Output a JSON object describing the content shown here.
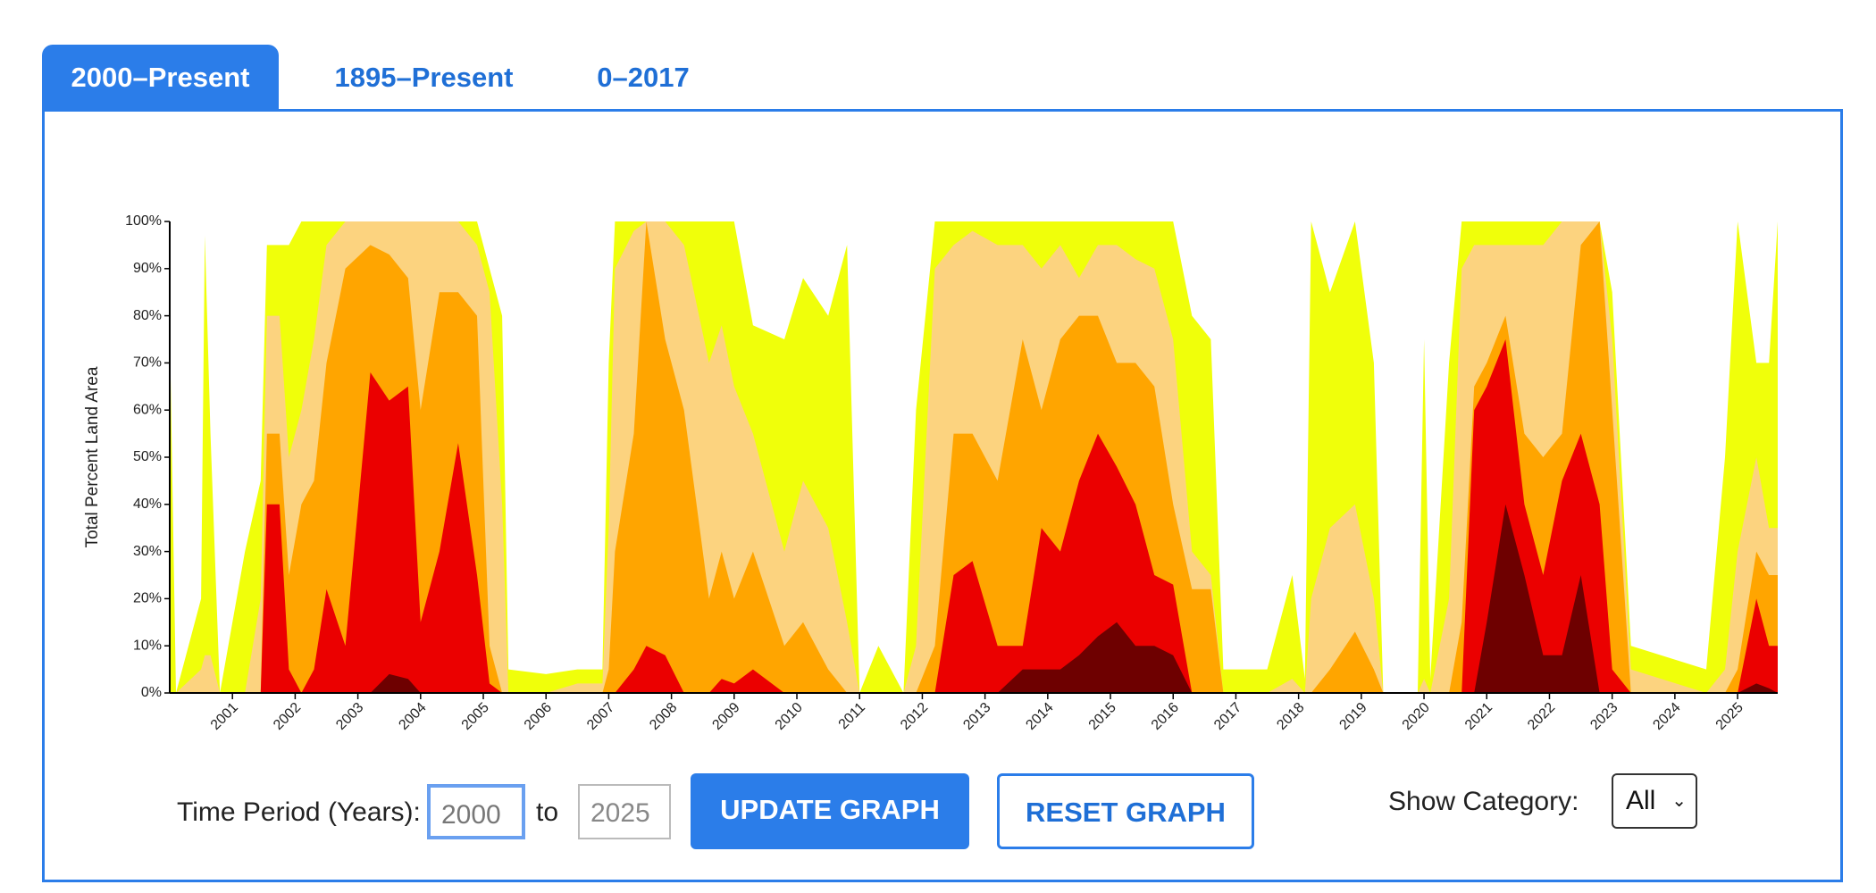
{
  "tabs": [
    "2000–Present",
    "1895–Present",
    "0–2017"
  ],
  "controls": {
    "period_label": "Time Period (Years):",
    "start": "2000",
    "to": "to",
    "end": "2025",
    "update": "UPDATE GRAPH",
    "reset": "RESET GRAPH",
    "category_label": "Show Category:",
    "category": "All"
  },
  "chart_data": {
    "type": "area",
    "ylabel": "Total Percent Land Area",
    "x": [
      2000.0,
      2000.1,
      2000.5,
      2000.56,
      2000.65,
      2000.8,
      2001.2,
      2001.45,
      2001.55,
      2001.75,
      2001.9,
      2002.1,
      2002.3,
      2002.5,
      2002.8,
      2003.2,
      2003.5,
      2003.8,
      2004.0,
      2004.3,
      2004.6,
      2004.9,
      2005.1,
      2005.3,
      2005.4,
      2006.0,
      2006.5,
      2006.9,
      2007.0,
      2007.1,
      2007.4,
      2007.6,
      2007.9,
      2008.2,
      2008.6,
      2008.8,
      2009.0,
      2009.3,
      2009.8,
      2010.1,
      2010.5,
      2010.8,
      2011.0,
      2011.3,
      2011.7,
      2011.9,
      2012.2,
      2012.5,
      2012.8,
      2013.2,
      2013.6,
      2013.9,
      2014.2,
      2014.5,
      2014.8,
      2015.1,
      2015.4,
      2015.7,
      2016.0,
      2016.3,
      2016.6,
      2016.8,
      2017.5,
      2017.9,
      2018.1,
      2018.2,
      2018.5,
      2018.9,
      2019.2,
      2019.35,
      2019.9,
      2020.0,
      2020.1,
      2020.4,
      2020.6,
      2020.8,
      2021.0,
      2021.3,
      2021.6,
      2021.9,
      2022.2,
      2022.5,
      2022.8,
      2023.0,
      2023.3,
      2024.5,
      2024.8,
      2025.0,
      2025.3,
      2025.5,
      2025.64
    ],
    "series": [
      {
        "color": "#f0ff0a",
        "values": [
          78,
          0,
          20,
          97,
          55,
          0,
          30,
          45,
          95,
          95,
          95,
          100,
          100,
          100,
          100,
          100,
          100,
          100,
          100,
          100,
          100,
          100,
          90,
          80,
          5,
          4,
          5,
          5,
          70,
          100,
          100,
          100,
          100,
          100,
          100,
          100,
          100,
          78,
          75,
          88,
          80,
          95,
          0,
          10,
          0,
          60,
          100,
          100,
          100,
          100,
          100,
          100,
          100,
          100,
          100,
          100,
          100,
          100,
          100,
          80,
          75,
          5,
          5,
          25,
          3,
          100,
          85,
          100,
          70,
          0,
          0,
          75,
          3,
          70,
          100,
          100,
          100,
          100,
          100,
          100,
          100,
          100,
          100,
          85,
          10,
          5,
          50,
          100,
          70,
          70,
          100
        ]
      },
      {
        "color": "#fcd37f",
        "values": [
          0,
          0,
          5,
          8,
          8,
          0,
          0,
          20,
          80,
          80,
          50,
          60,
          75,
          95,
          100,
          100,
          100,
          100,
          100,
          100,
          100,
          95,
          85,
          40,
          0,
          0,
          2,
          2,
          35,
          90,
          98,
          100,
          100,
          95,
          70,
          78,
          65,
          55,
          30,
          45,
          35,
          15,
          0,
          0,
          0,
          10,
          90,
          95,
          98,
          95,
          95,
          90,
          95,
          88,
          95,
          95,
          92,
          90,
          75,
          30,
          25,
          0,
          0,
          3,
          0,
          20,
          35,
          40,
          20,
          0,
          0,
          3,
          0,
          20,
          90,
          95,
          95,
          95,
          95,
          95,
          100,
          100,
          100,
          75,
          5,
          0,
          5,
          30,
          50,
          35,
          35
        ]
      },
      {
        "color": "#ffa500",
        "values": [
          0,
          0,
          0,
          0,
          0,
          0,
          0,
          0,
          55,
          55,
          25,
          40,
          45,
          70,
          90,
          95,
          93,
          88,
          60,
          85,
          85,
          80,
          10,
          0,
          0,
          0,
          0,
          0,
          5,
          30,
          55,
          100,
          75,
          60,
          20,
          30,
          20,
          30,
          10,
          15,
          5,
          0,
          0,
          0,
          0,
          0,
          10,
          55,
          55,
          45,
          75,
          60,
          75,
          80,
          80,
          70,
          70,
          65,
          40,
          22,
          22,
          0,
          0,
          0,
          0,
          0,
          5,
          13,
          5,
          0,
          0,
          0,
          0,
          0,
          15,
          65,
          70,
          80,
          55,
          50,
          55,
          95,
          100,
          60,
          0,
          0,
          0,
          5,
          30,
          25,
          25
        ]
      },
      {
        "color": "#eb0000",
        "values": [
          0,
          0,
          0,
          0,
          0,
          0,
          0,
          0,
          40,
          40,
          5,
          0,
          5,
          22,
          10,
          68,
          62,
          65,
          15,
          30,
          53,
          25,
          2,
          0,
          0,
          0,
          0,
          0,
          0,
          0,
          5,
          10,
          8,
          0,
          0,
          3,
          2,
          5,
          0,
          0,
          0,
          0,
          0,
          0,
          0,
          0,
          0,
          25,
          28,
          10,
          10,
          35,
          30,
          45,
          55,
          48,
          40,
          25,
          23,
          0,
          0,
          0,
          0,
          0,
          0,
          0,
          0,
          0,
          0,
          0,
          0,
          0,
          0,
          0,
          0,
          60,
          65,
          75,
          40,
          25,
          45,
          55,
          40,
          5,
          0,
          0,
          0,
          0,
          20,
          10,
          10
        ]
      },
      {
        "color": "#6e0000",
        "values": [
          0,
          0,
          0,
          0,
          0,
          0,
          0,
          0,
          0,
          0,
          0,
          0,
          0,
          0,
          0,
          0,
          4,
          3,
          0,
          0,
          0,
          0,
          0,
          0,
          0,
          0,
          0,
          0,
          0,
          0,
          0,
          0,
          0,
          0,
          0,
          0,
          0,
          0,
          0,
          0,
          0,
          0,
          0,
          0,
          0,
          0,
          0,
          0,
          0,
          0,
          5,
          5,
          5,
          8,
          12,
          15,
          10,
          10,
          8,
          0,
          0,
          0,
          0,
          0,
          0,
          0,
          0,
          0,
          0,
          0,
          0,
          0,
          0,
          0,
          0,
          0,
          15,
          40,
          25,
          8,
          8,
          25,
          0,
          0,
          0,
          0,
          0,
          0,
          2,
          1,
          0
        ]
      }
    ],
    "xlim": [
      2000,
      2025.64
    ],
    "xticks": [
      2001,
      2002,
      2003,
      2004,
      2005,
      2006,
      2007,
      2008,
      2009,
      2010,
      2011,
      2012,
      2013,
      2014,
      2015,
      2016,
      2017,
      2018,
      2019,
      2020,
      2021,
      2022,
      2023,
      2024,
      2025
    ],
    "ylim": [
      0,
      100
    ],
    "yticks": [
      {
        "value": 0,
        "label": "0%"
      },
      {
        "value": 10,
        "label": "10%"
      },
      {
        "value": 20,
        "label": "20%"
      },
      {
        "value": 30,
        "label": "30%"
      },
      {
        "value": 40,
        "label": "40%"
      },
      {
        "value": 50,
        "label": "50%"
      },
      {
        "value": 60,
        "label": "60%"
      },
      {
        "value": 70,
        "label": "70%"
      },
      {
        "value": 80,
        "label": "80%"
      },
      {
        "value": 90,
        "label": "90%"
      },
      {
        "value": 100,
        "label": "100%"
      }
    ],
    "grid": false
  }
}
